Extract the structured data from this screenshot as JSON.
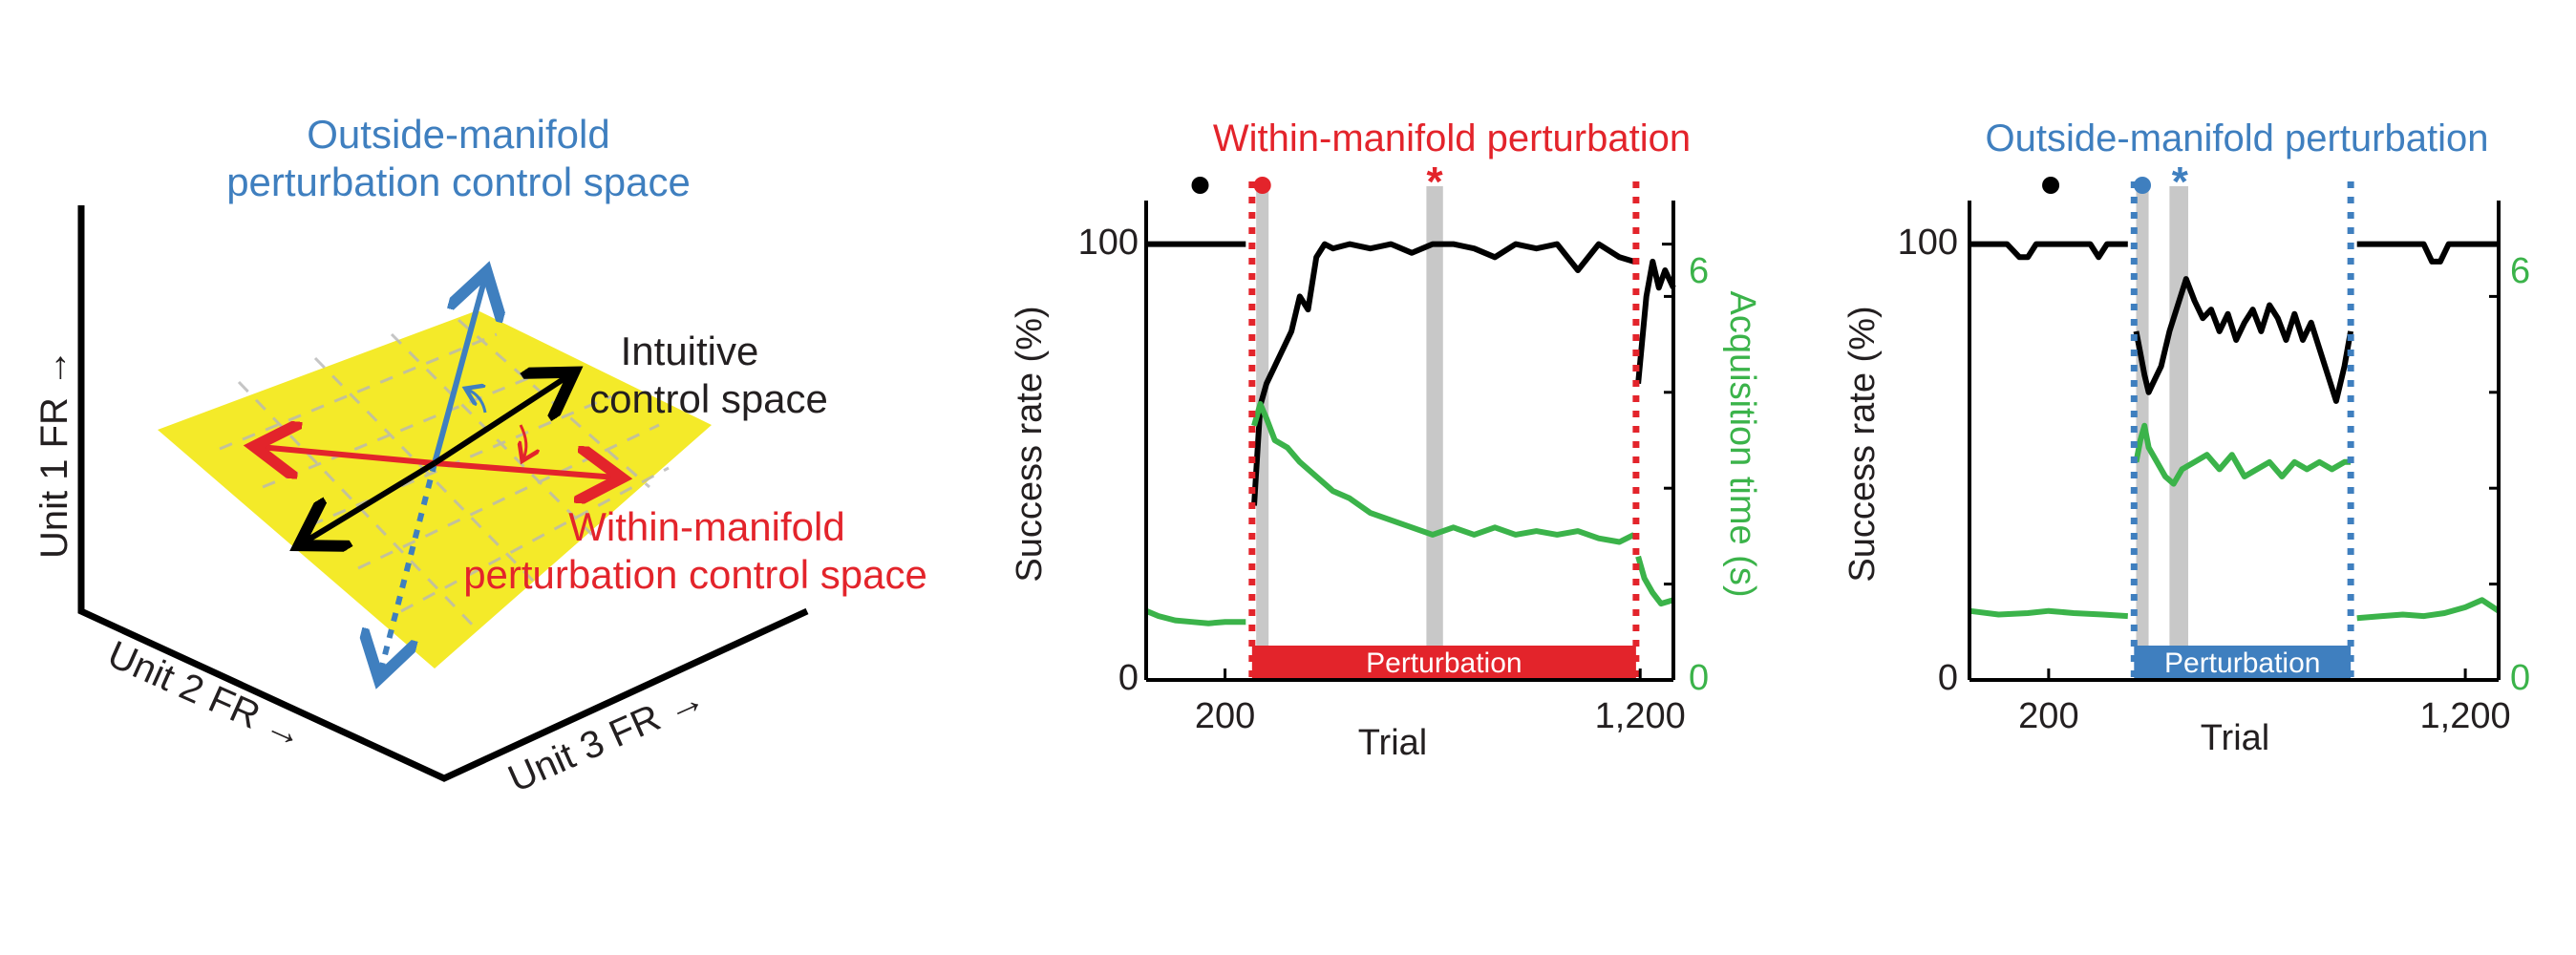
{
  "colors": {
    "red": "#e3242b",
    "blue": "#3f7fbf",
    "green": "#3bb34a",
    "black": "#000000",
    "yellow": "#f4ea29",
    "gray": "#c8c8c8"
  },
  "diagram": {
    "outside_label_line1": "Outside-manifold",
    "outside_label_line2": "perturbation control space",
    "intuitive_label_line1": "Intuitive",
    "intuitive_label_line2": "control space",
    "within_label_line1": "Within-manifold",
    "within_label_line2": "perturbation control space",
    "axis1": "Unit 1 FR →",
    "axis2": "Unit 2 FR →",
    "axis3": "Unit 3 FR →"
  },
  "chart_data": [
    {
      "type": "line",
      "title": "Within-manifold perturbation",
      "title_color": "#e3242b",
      "xlabel": "Trial",
      "ylabel": "Success rate (%)",
      "y2label": "Acquisition time (s)",
      "xlim": [
        10,
        1280
      ],
      "ylim": [
        0,
        110
      ],
      "y2lim": [
        0,
        6.6
      ],
      "xticks": [
        200,
        1200
      ],
      "xtick_labels": [
        "200",
        "1,200"
      ],
      "yticks": [
        0,
        100
      ],
      "ytick_labels": [
        "0",
        "100"
      ],
      "y2ticks": [
        0,
        6
      ],
      "y2tick_labels": [
        "0",
        "6"
      ],
      "perturbation_start": 265,
      "perturbation_end": 1190,
      "perturbation_label": "Perturbation",
      "perturbation_color": "#e3242b",
      "shaded_bands": [
        [
          275,
          305
        ],
        [
          685,
          725
        ]
      ],
      "markers": [
        {
          "x": 140,
          "symbol": "●",
          "color": "#000000"
        },
        {
          "x": 290,
          "symbol": "●",
          "color": "#e3242b"
        },
        {
          "x": 705,
          "symbol": "*",
          "color": "#e3242b"
        }
      ],
      "series": [
        {
          "axis": "left",
          "color": "#000000",
          "segments": [
            {
              "x": [
                10,
                100,
                200,
                250
              ],
              "y": [
                100,
                100,
                100,
                100
              ]
            },
            {
              "x": [
                270,
                285,
                300,
                320,
                340,
                360,
                380,
                400,
                420,
                440,
                460,
                500,
                550,
                600,
                650,
                700,
                750,
                800,
                850,
                900,
                950,
                1000,
                1050,
                1100,
                1150,
                1185
              ],
              "y": [
                40,
                63,
                68,
                72,
                76,
                80,
                88,
                85,
                97,
                100,
                99,
                100,
                99,
                100,
                98,
                100,
                100,
                99,
                97,
                100,
                99,
                100,
                94,
                100,
                97,
                96
              ]
            },
            {
              "x": [
                1195,
                1205,
                1215,
                1230,
                1245,
                1260,
                1280
              ],
              "y": [
                68,
                78,
                88,
                96,
                90,
                94,
                90
              ]
            }
          ]
        },
        {
          "axis": "right",
          "color": "#3bb34a",
          "segments": [
            {
              "x": [
                10,
                40,
                80,
                120,
                160,
                200,
                250
              ],
              "y": [
                0.95,
                0.88,
                0.82,
                0.8,
                0.78,
                0.8,
                0.8
              ]
            },
            {
              "x": [
                270,
                285,
                300,
                320,
                350,
                380,
                420,
                460,
                500,
                550,
                600,
                650,
                700,
                750,
                800,
                850,
                900,
                950,
                1000,
                1050,
                1100,
                1150,
                1185
              ],
              "y": [
                3.5,
                3.8,
                3.6,
                3.3,
                3.2,
                3.0,
                2.8,
                2.6,
                2.5,
                2.3,
                2.2,
                2.1,
                2.0,
                2.1,
                2.0,
                2.1,
                2.0,
                2.05,
                2.0,
                2.05,
                1.95,
                1.9,
                2.0
              ]
            },
            {
              "x": [
                1195,
                1210,
                1230,
                1250,
                1280
              ],
              "y": [
                1.7,
                1.4,
                1.2,
                1.05,
                1.1
              ]
            }
          ]
        }
      ]
    },
    {
      "type": "line",
      "title": "Outside-manifold perturbation",
      "title_color": "#3f7fbf",
      "xlabel": "Trial",
      "ylabel": "Success rate (%)",
      "xlim": [
        10,
        1280
      ],
      "ylim": [
        0,
        110
      ],
      "y2lim": [
        0,
        6.6
      ],
      "xticks": [
        200,
        1200
      ],
      "xtick_labels": [
        "200",
        "1,200"
      ],
      "yticks": [
        0,
        100
      ],
      "ytick_labels": [
        "0",
        "100"
      ],
      "y2ticks": [
        0,
        6
      ],
      "y2tick_labels": [
        "0",
        "6"
      ],
      "perturbation_start": 405,
      "perturbation_end": 925,
      "perturbation_label": "Perturbation",
      "perturbation_color": "#3f7fbf",
      "shaded_bands": [
        [
          410,
          440
        ],
        [
          490,
          535
        ]
      ],
      "markers": [
        {
          "x": 205,
          "symbol": "●",
          "color": "#000000"
        },
        {
          "x": 425,
          "symbol": "●",
          "color": "#3f7fbf"
        },
        {
          "x": 515,
          "symbol": "*",
          "color": "#3f7fbf"
        }
      ],
      "series": [
        {
          "axis": "left",
          "color": "#000000",
          "segments": [
            {
              "x": [
                10,
                100,
                130,
                150,
                170,
                200,
                250,
                300,
                320,
                340,
                390
              ],
              "y": [
                100,
                100,
                97,
                97,
                100,
                100,
                100,
                100,
                97,
                100,
                100
              ]
            },
            {
              "x": [
                410,
                420,
                430,
                440,
                450,
                470,
                490,
                510,
                530,
                550,
                570,
                590,
                610,
                630,
                650,
                670,
                690,
                710,
                730,
                750,
                770,
                790,
                810,
                830,
                850,
                870,
                890,
                910,
                925
              ],
              "y": [
                80,
                75,
                70,
                66,
                68,
                72,
                80,
                86,
                92,
                87,
                83,
                85,
                80,
                84,
                78,
                82,
                85,
                80,
                86,
                83,
                78,
                84,
                78,
                82,
                76,
                70,
                64,
                72,
                80
              ]
            },
            {
              "x": [
                940,
                1000,
                1100,
                1120,
                1140,
                1160,
                1280
              ],
              "y": [
                100,
                100,
                100,
                96,
                96,
                100,
                100
              ]
            }
          ]
        },
        {
          "axis": "right",
          "color": "#3bb34a",
          "segments": [
            {
              "x": [
                10,
                80,
                150,
                200,
                260,
                330,
                390
              ],
              "y": [
                0.95,
                0.9,
                0.92,
                0.95,
                0.92,
                0.9,
                0.88
              ]
            },
            {
              "x": [
                410,
                420,
                430,
                440,
                460,
                480,
                500,
                520,
                550,
                580,
                610,
                640,
                670,
                700,
                730,
                760,
                790,
                820,
                850,
                880,
                910,
                925
              ],
              "y": [
                3.0,
                3.3,
                3.5,
                3.2,
                3.0,
                2.8,
                2.7,
                2.9,
                3.0,
                3.1,
                2.9,
                3.1,
                2.8,
                2.9,
                3.0,
                2.8,
                3.0,
                2.9,
                3.0,
                2.9,
                3.0,
                3.0
              ]
            },
            {
              "x": [
                940,
                1000,
                1050,
                1100,
                1150,
                1200,
                1240,
                1280
              ],
              "y": [
                0.85,
                0.88,
                0.9,
                0.88,
                0.92,
                1.0,
                1.1,
                0.95
              ]
            }
          ]
        }
      ]
    }
  ]
}
